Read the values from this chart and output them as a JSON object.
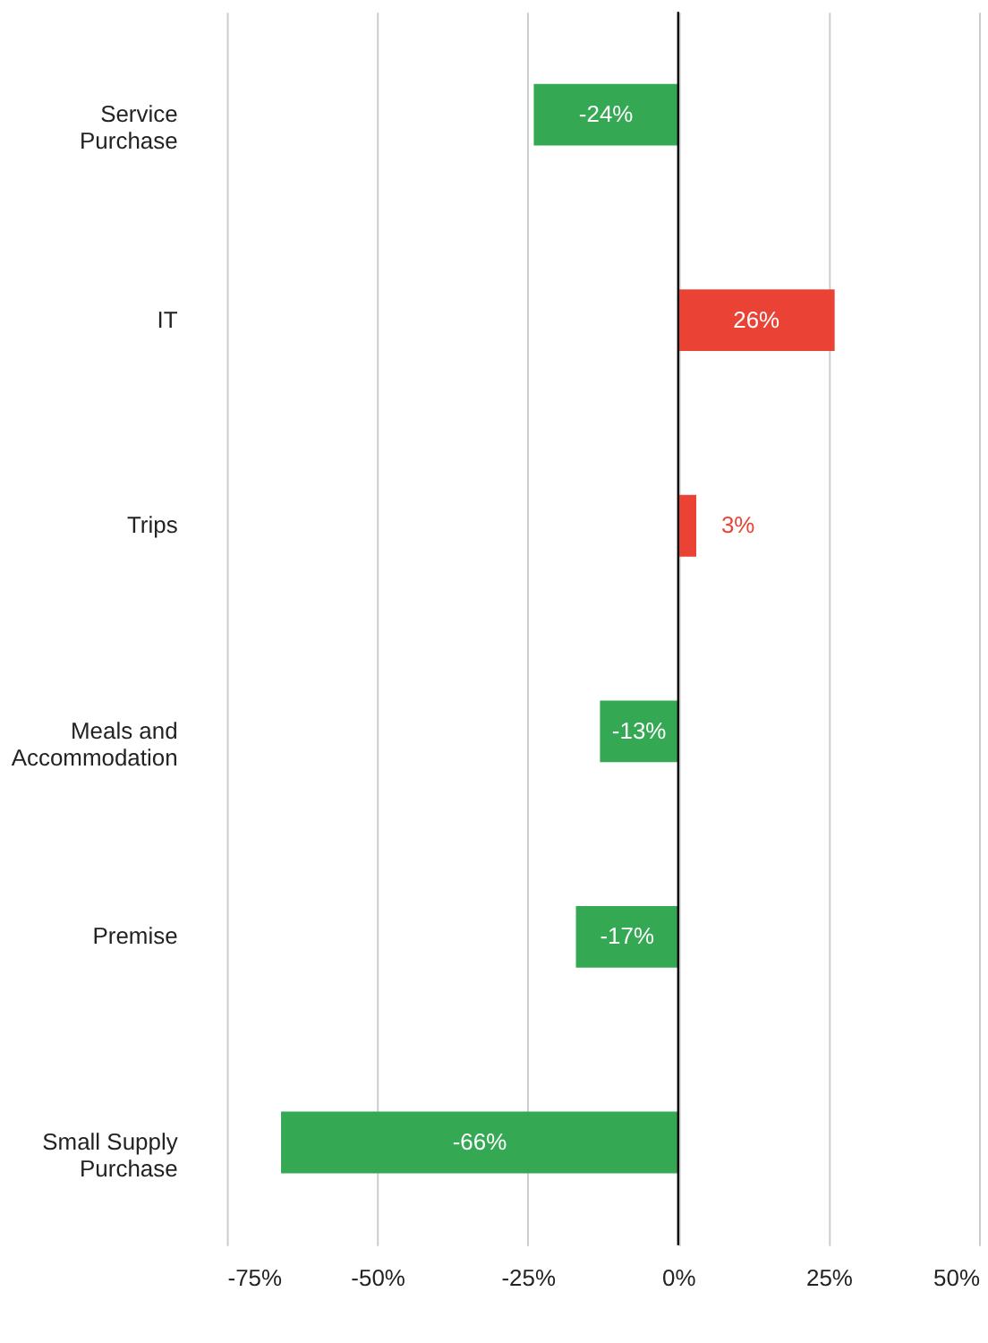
{
  "chart_data": {
    "type": "bar",
    "orientation": "horizontal",
    "categories": [
      "Service Purchase",
      "IT",
      "Trips",
      "Meals and Accommodation",
      "Premise",
      "Small Supply Purchase"
    ],
    "values": [
      -24,
      26,
      3,
      -13,
      -17,
      -66
    ],
    "colors": [
      "#34a853",
      "#ea4335",
      "#ea4335",
      "#34a853",
      "#34a853",
      "#34a853"
    ],
    "value_labels": [
      "-24%",
      "26%",
      "3%",
      "-13%",
      "-17%",
      "-66%"
    ],
    "xlim": [
      -75,
      50
    ],
    "xticks": [
      {
        "value": -75,
        "label": "-75%"
      },
      {
        "value": -50,
        "label": "-50%"
      },
      {
        "value": -25,
        "label": "-25%"
      },
      {
        "value": 0,
        "label": "0%"
      },
      {
        "value": 25,
        "label": "25%"
      },
      {
        "value": 50,
        "label": "50%"
      }
    ],
    "ref_lines": [
      {
        "axis": "x",
        "value": 0,
        "color": "#000000"
      }
    ],
    "grid": "x"
  }
}
